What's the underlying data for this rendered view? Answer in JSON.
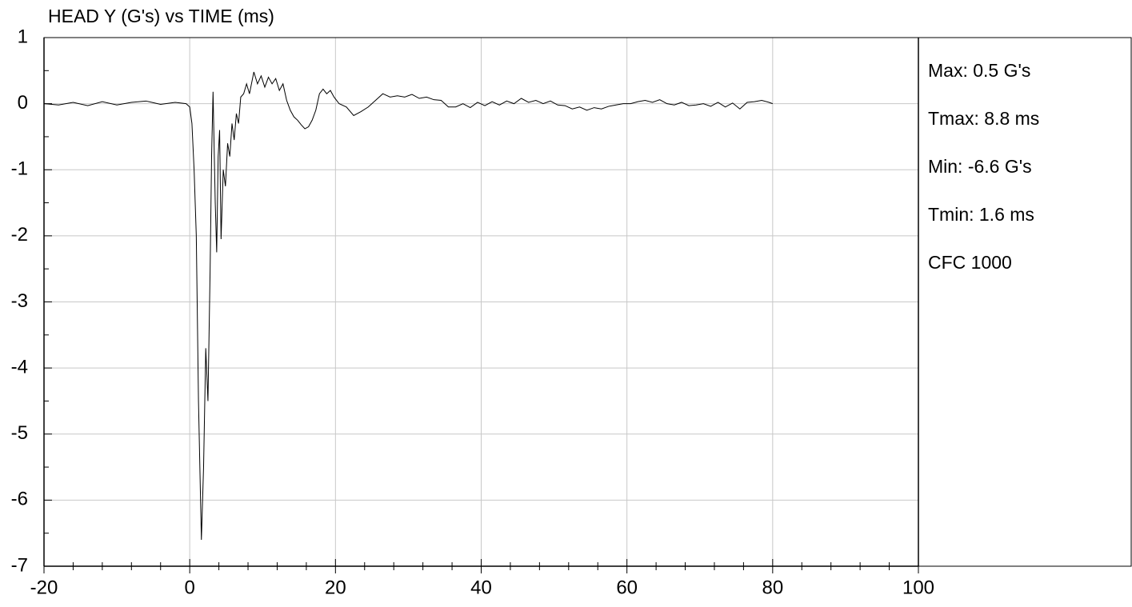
{
  "chart_data": {
    "type": "line",
    "title": "HEAD Y (G's) vs TIME (ms)",
    "x": [
      -20,
      -18,
      -16,
      -14,
      -12,
      -10,
      -8,
      -6,
      -4,
      -2,
      -0.5,
      0,
      0.3,
      0.6,
      0.9,
      1.2,
      1.6,
      1.9,
      2.2,
      2.5,
      2.8,
      3.0,
      3.2,
      3.5,
      3.7,
      3.9,
      4.1,
      4.3,
      4.6,
      4.9,
      5.2,
      5.5,
      5.8,
      6.1,
      6.4,
      6.7,
      7.0,
      7.4,
      7.8,
      8.2,
      8.8,
      9.3,
      9.8,
      10.3,
      10.8,
      11.3,
      11.8,
      12.3,
      12.8,
      13.3,
      13.8,
      14.3,
      14.8,
      15.3,
      15.8,
      16.3,
      16.8,
      17.3,
      17.8,
      18.3,
      18.8,
      19.3,
      19.8,
      20.5,
      21.5,
      22.5,
      23.5,
      24.5,
      25.5,
      26.5,
      27.5,
      28.5,
      29.5,
      30.5,
      31.5,
      32.5,
      33.5,
      34.5,
      35.5,
      36.5,
      37.5,
      38.5,
      39.5,
      40.5,
      41.5,
      42.5,
      43.5,
      44.5,
      45.5,
      46.5,
      47.5,
      48.5,
      49.5,
      50.5,
      51.5,
      52.5,
      53.5,
      54.5,
      55.5,
      56.5,
      57.5,
      58.5,
      59.5,
      60.5,
      61.5,
      62.5,
      63.5,
      64.5,
      65.5,
      66.5,
      67.5,
      68.5,
      69.5,
      70.5,
      71.5,
      72.5,
      73.5,
      74.5,
      75.5,
      76.5,
      77.5,
      78.5,
      79.5,
      80
    ],
    "series": [
      {
        "color": "#000000",
        "values": [
          0,
          -0.02,
          0.02,
          -0.03,
          0.03,
          -0.02,
          0.02,
          0.04,
          -0.01,
          0.02,
          0,
          -0.05,
          -0.3,
          -1.0,
          -2.0,
          -4.5,
          -6.6,
          -5.5,
          -3.7,
          -4.5,
          -2.5,
          -0.8,
          0.18,
          -1.5,
          -2.25,
          -0.8,
          -0.4,
          -2.05,
          -1.0,
          -1.25,
          -0.6,
          -0.8,
          -0.3,
          -0.55,
          -0.15,
          -0.3,
          0.1,
          0.15,
          0.3,
          0.15,
          0.48,
          0.3,
          0.42,
          0.25,
          0.4,
          0.3,
          0.38,
          0.2,
          0.3,
          0.05,
          -0.1,
          -0.2,
          -0.25,
          -0.32,
          -0.38,
          -0.35,
          -0.25,
          -0.1,
          0.15,
          0.22,
          0.15,
          0.2,
          0.1,
          0.0,
          -0.05,
          -0.18,
          -0.12,
          -0.05,
          0.05,
          0.15,
          0.1,
          0.12,
          0.1,
          0.14,
          0.08,
          0.1,
          0.06,
          0.05,
          -0.05,
          -0.05,
          0.0,
          -0.06,
          0.02,
          -0.03,
          0.03,
          -0.02,
          0.04,
          0.0,
          0.08,
          0.02,
          0.05,
          0.0,
          0.04,
          -0.02,
          -0.03,
          -0.08,
          -0.05,
          -0.1,
          -0.06,
          -0.08,
          -0.04,
          -0.02,
          0.0,
          0.0,
          0.03,
          0.05,
          0.02,
          0.06,
          0.0,
          -0.02,
          0.02,
          -0.03,
          -0.02,
          0.0,
          -0.04,
          0.02,
          -0.05,
          0.01,
          -0.08,
          0.02,
          0.03,
          0.05,
          0.02,
          0.0
        ]
      }
    ],
    "xlim": [
      -20,
      100
    ],
    "ylim": [
      -7,
      1
    ],
    "xticks": [
      -20,
      0,
      20,
      40,
      60,
      80,
      100
    ],
    "yticks": [
      1,
      0,
      -1,
      -2,
      -3,
      -4,
      -5,
      -6,
      -7
    ],
    "xminorticks": [
      -16,
      -12,
      -8,
      -4,
      4,
      8,
      12,
      16,
      24,
      28,
      32,
      36,
      44,
      48,
      52,
      56,
      64,
      68,
      72,
      76,
      84,
      88,
      92,
      96
    ],
    "yminorticks": [
      0.5,
      -0.5,
      -1.5,
      -2.5,
      -3.5,
      -4.5,
      -5.5,
      -6.5
    ],
    "grid": true,
    "annotations": [
      "Max: 0.5 G's",
      "Tmax: 8.8 ms",
      "Min: -6.6 G's",
      "Tmin: 1.6 ms",
      "CFC 1000"
    ]
  }
}
